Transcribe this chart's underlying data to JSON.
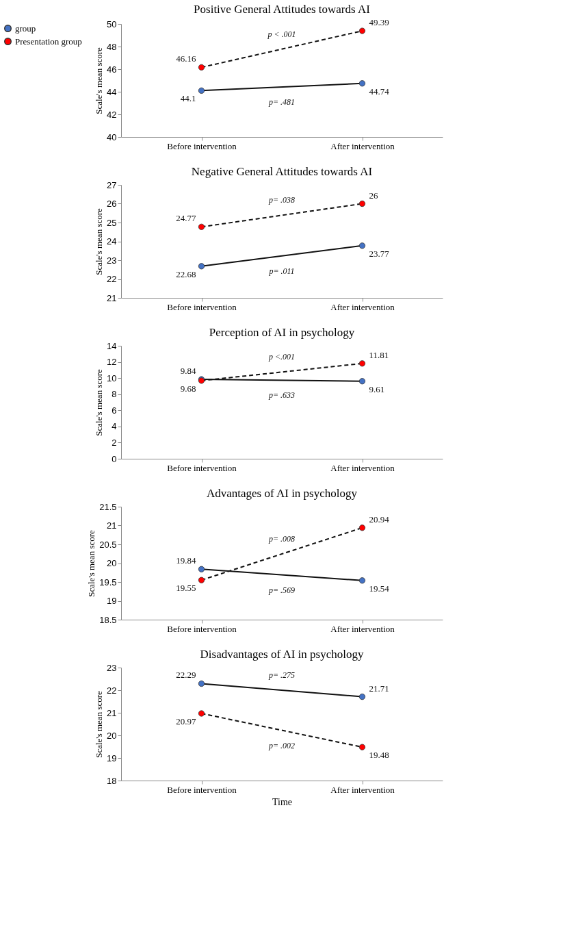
{
  "chart_data": [
    {
      "type": "line",
      "title": "Positive General Attitudes towards AI",
      "ylabel": "Scale's mean score",
      "categories": [
        "Before intervention",
        "After intervention"
      ],
      "ylim": [
        40,
        50
      ],
      "yticks": [
        40,
        42,
        44,
        46,
        48,
        50
      ],
      "grid": false,
      "legend": "left",
      "marker": "circle",
      "data_labels": true,
      "series": [
        {
          "name": "group",
          "color": "#4472c4",
          "line_style": "solid",
          "values": [
            44.1,
            44.74
          ]
        },
        {
          "name": "Presentation group",
          "color": "#ff0000",
          "line_style": "dashed",
          "values": [
            46.16,
            49.39
          ]
        }
      ],
      "annotations": [
        "p= .481",
        "p < .001"
      ]
    },
    {
      "type": "line",
      "title": "Negative General Attitudes towards AI",
      "ylabel": "Scale's mean score",
      "categories": [
        "Before intervention",
        "After intervention"
      ],
      "ylim": [
        21,
        27
      ],
      "yticks": [
        21,
        22,
        23,
        24,
        25,
        26,
        27
      ],
      "grid": false,
      "marker": "circle",
      "data_labels": true,
      "series": [
        {
          "color": "#4472c4",
          "line_style": "solid",
          "values": [
            22.68,
            23.77
          ]
        },
        {
          "color": "#ff0000",
          "line_style": "dashed",
          "values": [
            24.77,
            26
          ]
        }
      ],
      "annotations": [
        "p= .011",
        "p= .038"
      ]
    },
    {
      "type": "line",
      "title": "Perception of AI in psychology",
      "ylabel": "Scale's mean score",
      "categories": [
        "Before intervention",
        "After intervention"
      ],
      "ylim": [
        0,
        14
      ],
      "yticks": [
        0,
        2,
        4,
        6,
        8,
        10,
        12,
        14
      ],
      "grid": false,
      "marker": "circle",
      "data_labels": true,
      "series": [
        {
          "color": "#4472c4",
          "line_style": "solid",
          "values": [
            9.84,
            9.61
          ]
        },
        {
          "color": "#ff0000",
          "line_style": "dashed",
          "values": [
            9.68,
            11.81
          ]
        }
      ],
      "annotations": [
        "p= .633",
        "p <.001"
      ]
    },
    {
      "type": "line",
      "title": "Advantages of AI in psychology",
      "ylabel": "Scale's mean score",
      "categories": [
        "Before intervention",
        "After intervention"
      ],
      "ylim": [
        18.5,
        21.5
      ],
      "yticks": [
        18.5,
        19,
        19.5,
        20,
        20.5,
        21,
        21.5
      ],
      "grid": false,
      "marker": "circle",
      "data_labels": true,
      "series": [
        {
          "color": "#4472c4",
          "line_style": "solid",
          "values": [
            19.84,
            19.54
          ]
        },
        {
          "color": "#ff0000",
          "line_style": "dashed",
          "values": [
            19.55,
            20.94
          ]
        }
      ],
      "annotations": [
        "p= .569",
        "p= .008"
      ]
    },
    {
      "type": "line",
      "title": "Disadvantages of AI in psychology",
      "xlabel": "Time",
      "ylabel": "Scale's mean score",
      "categories": [
        "Before intervention",
        "After intervention"
      ],
      "ylim": [
        18,
        23
      ],
      "yticks": [
        18,
        19,
        20,
        21,
        22,
        23
      ],
      "grid": false,
      "marker": "circle",
      "data_labels": true,
      "series": [
        {
          "color": "#4472c4",
          "line_style": "solid",
          "values": [
            22.29,
            21.71
          ]
        },
        {
          "color": "#ff0000",
          "line_style": "dashed",
          "values": [
            20.97,
            19.48
          ]
        }
      ],
      "annotations": [
        "p= .275",
        "p= .002"
      ]
    }
  ]
}
